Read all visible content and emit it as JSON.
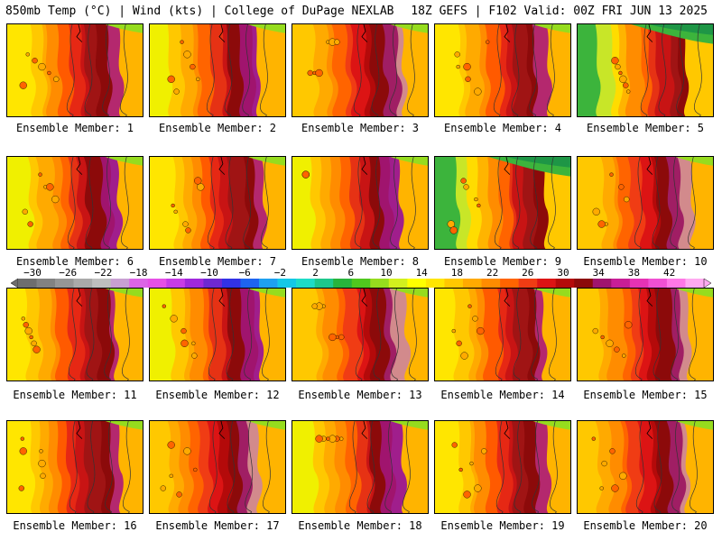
{
  "header": {
    "title": "850mb Temp (°C) | Wind (kts) | College of DuPage NEXLAB",
    "run_info": "18Z GEFS | F102 Valid: 00Z FRI JUN 13 2025"
  },
  "panels": [
    {
      "label": "Ensemble Member: 1",
      "palette": 1
    },
    {
      "label": "Ensemble Member: 2",
      "palette": 2
    },
    {
      "label": "Ensemble Member: 3",
      "palette": 0
    },
    {
      "label": "Ensemble Member: 4",
      "palette": 1
    },
    {
      "label": "Ensemble Member: 5",
      "palette": 3
    },
    {
      "label": "Ensemble Member: 6",
      "palette": 2
    },
    {
      "label": "Ensemble Member: 7",
      "palette": 1
    },
    {
      "label": "Ensemble Member: 8",
      "palette": 2
    },
    {
      "label": "Ensemble Member: 9",
      "palette": 3
    },
    {
      "label": "Ensemble Member: 10",
      "palette": 0
    },
    {
      "label": "Ensemble Member: 11",
      "palette": 1
    },
    {
      "label": "Ensemble Member: 12",
      "palette": 2
    },
    {
      "label": "Ensemble Member: 13",
      "palette": 0
    },
    {
      "label": "Ensemble Member: 14",
      "palette": 1
    },
    {
      "label": "Ensemble Member: 15",
      "palette": 0
    },
    {
      "label": "Ensemble Member: 16",
      "palette": 1
    },
    {
      "label": "Ensemble Member: 17",
      "palette": 0
    },
    {
      "label": "Ensemble Member: 18",
      "palette": 2
    },
    {
      "label": "Ensemble Member: 19",
      "palette": 1
    },
    {
      "label": "Ensemble Member: 20",
      "palette": 0
    }
  ],
  "colorbar": {
    "labels": [
      "−30",
      "−26",
      "−22",
      "−18",
      "−14",
      "−10",
      "−6",
      "−2",
      "2",
      "6",
      "10",
      "14",
      "18",
      "22",
      "26",
      "30",
      "34",
      "38",
      "42"
    ],
    "colors": [
      "#6e6e6e",
      "#828282",
      "#969696",
      "#aaaaaa",
      "#bebebe",
      "#c8a0d2",
      "#dc64e6",
      "#e650e6",
      "#c83ce6",
      "#a028dc",
      "#6e28d2",
      "#3232e6",
      "#1e64f0",
      "#1ea0f0",
      "#14c8e6",
      "#1edcc8",
      "#1ec88c",
      "#28b43c",
      "#50c81e",
      "#96dc1e",
      "#d2f01e",
      "#ffff00",
      "#ffe600",
      "#ffc800",
      "#ffaa00",
      "#ff8c00",
      "#ff6400",
      "#f03c14",
      "#dc1414",
      "#b40a0a",
      "#8c0a0a",
      "#a0146e",
      "#c81e96",
      "#e632b4",
      "#f050d2",
      "#ff78e6",
      "#ffaaf0"
    ]
  }
}
